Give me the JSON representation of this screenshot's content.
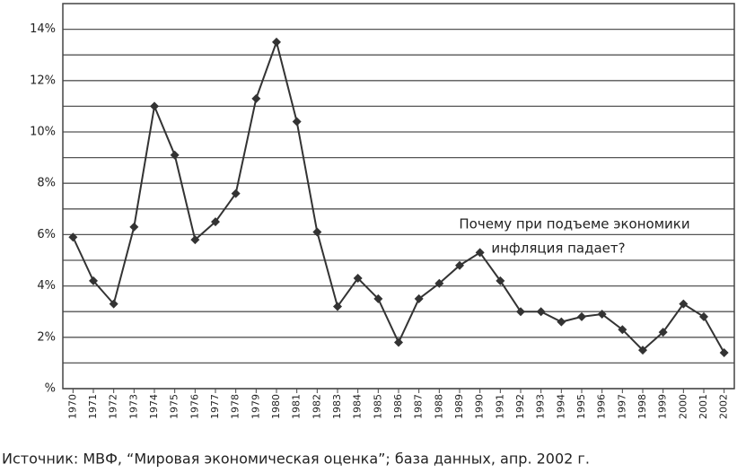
{
  "chart_data": {
    "type": "line",
    "categories": [
      "1970",
      "1971",
      "1972",
      "1973",
      "1974",
      "1975",
      "1976",
      "1977",
      "1978",
      "1979",
      "1980",
      "1981",
      "1982",
      "1983",
      "1984",
      "1985",
      "1986",
      "1987",
      "1988",
      "1989",
      "1990",
      "1991",
      "1992",
      "1993",
      "1994",
      "1995",
      "1996",
      "1997",
      "1998",
      "1999",
      "2000",
      "2001",
      "2002"
    ],
    "values": [
      5.9,
      4.2,
      3.3,
      6.3,
      11.0,
      9.1,
      5.8,
      6.5,
      7.6,
      11.3,
      13.5,
      10.4,
      6.1,
      3.2,
      4.3,
      3.5,
      1.8,
      3.5,
      4.1,
      4.8,
      5.3,
      4.2,
      3.0,
      3.0,
      2.6,
      2.8,
      2.9,
      2.3,
      1.5,
      2.2,
      3.3,
      2.8,
      1.4
    ],
    "color": "#333333",
    "ylim": [
      0,
      15
    ],
    "yticks": [
      {
        "value": 0,
        "label": "%"
      },
      {
        "value": 2,
        "label": "2%"
      },
      {
        "value": 4,
        "label": "4%"
      },
      {
        "value": 6,
        "label": "6%"
      },
      {
        "value": 8,
        "label": "8%"
      },
      {
        "value": 10,
        "label": "10%"
      },
      {
        "value": 12,
        "label": "12%"
      },
      {
        "value": 14,
        "label": "14%"
      }
    ],
    "yminor": [
      1,
      3,
      5,
      7,
      9,
      11,
      13
    ],
    "grid": true,
    "annotation": [
      "Почему при подъеме экономики",
      "инфляция падает?"
    ],
    "source": "Источник: МВФ, “Мировая экономическая оценка”; база данных, апр. 2002 г."
  }
}
